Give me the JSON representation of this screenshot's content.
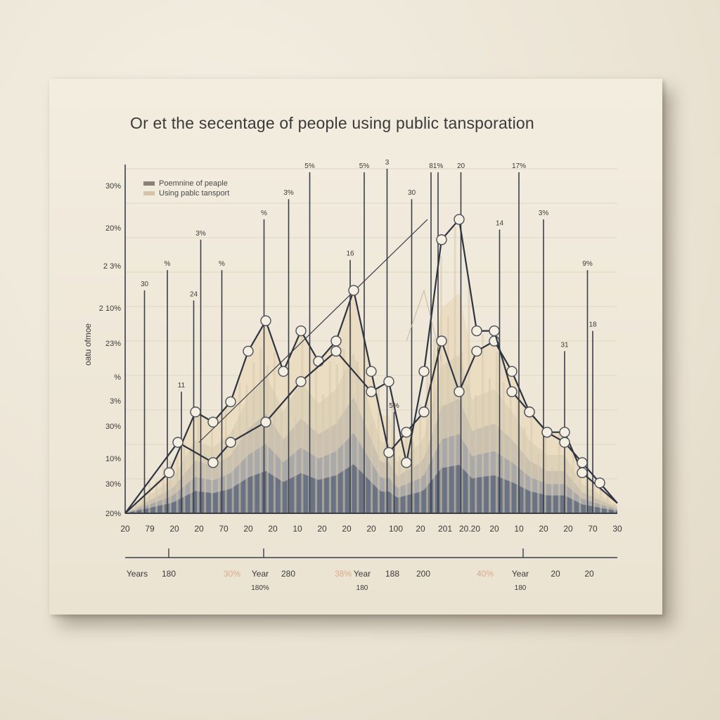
{
  "chart_data": {
    "type": "line",
    "title": "Or et the secentage of people  using public tansporation",
    "ylabel": "oatu ofmoe",
    "legend": [
      "Poemnine of peaple",
      "Using pablc tansport"
    ],
    "legend_colors": [
      "#8b7f78",
      "#d6c4a8"
    ],
    "y_ticks": [
      "20%",
      "30%",
      "10%",
      "30%",
      "3%",
      "%",
      "23%",
      "2 10%",
      "2 3%",
      "20%",
      "30%"
    ],
    "x_ticks": [
      "20",
      "79",
      "20",
      "20",
      "70",
      "20",
      "20",
      "10",
      "20",
      "20",
      "20",
      "100",
      "20",
      "201",
      "20.20",
      "20",
      "10",
      "20",
      "20",
      "70",
      "30"
    ],
    "bottom_labels": [
      {
        "text": "Years",
        "sub": ""
      },
      {
        "text": "180",
        "sub": ""
      },
      {
        "text": "30%",
        "sub": ""
      },
      {
        "text": "Year",
        "sub": "180%"
      },
      {
        "text": "280",
        "sub": ""
      },
      {
        "text": "38%",
        "sub": ""
      },
      {
        "text": "Year",
        "sub": "180"
      },
      {
        "text": "188",
        "sub": ""
      },
      {
        "text": "200",
        "sub": ""
      },
      {
        "text": "40%",
        "sub": ""
      },
      {
        "text": "Year",
        "sub": "180"
      },
      {
        "text": "20",
        "sub": ""
      },
      {
        "text": "20",
        "sub": ""
      }
    ],
    "annotations": [
      "30",
      "%",
      "11",
      "24",
      "3%",
      "%",
      "5%",
      "3%",
      "30",
      "3%",
      "16",
      "5%",
      "3",
      "30",
      "8",
      "1%",
      "20",
      "17%",
      "14",
      "3%",
      "31",
      "9%",
      "18"
    ],
    "series": [
      {
        "name": "Poemnine of peaple",
        "x": [
          0,
          2.5,
          4,
          5,
          6,
          7,
          8,
          9,
          10,
          11,
          12,
          13,
          14,
          15,
          16,
          17,
          18,
          19,
          20,
          21,
          22,
          23,
          24,
          25,
          26,
          28
        ],
        "y": [
          0,
          4,
          10,
          9,
          11,
          16,
          19,
          14,
          18,
          15,
          17,
          22,
          14,
          6,
          8,
          10,
          17,
          12,
          16,
          17,
          14,
          10,
          8,
          8,
          4,
          1
        ],
        "color": "#2e3440"
      },
      {
        "name": "Using pablc tansport",
        "x": [
          0,
          3,
          5,
          6,
          8,
          10,
          12,
          14,
          15,
          16,
          17,
          18,
          19,
          20,
          21,
          22,
          23,
          24,
          25,
          26,
          27,
          28
        ],
        "y": [
          0,
          7,
          5,
          7,
          9,
          13,
          16,
          12,
          13,
          5,
          14,
          27,
          29,
          18,
          18,
          12,
          10,
          8,
          7,
          5,
          3,
          1
        ],
        "color": "#2e3440"
      }
    ],
    "ylim": [
      0,
      34
    ],
    "xlim": [
      0,
      28
    ],
    "grid": true
  }
}
